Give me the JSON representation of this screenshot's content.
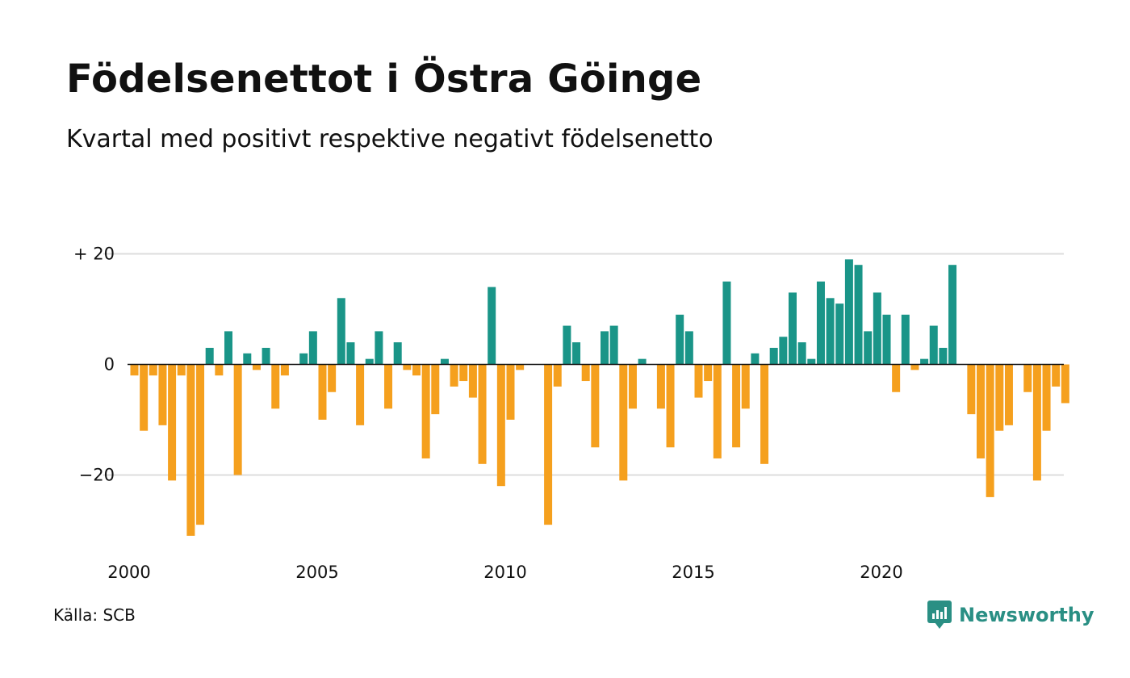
{
  "title": "Födelsenettot i Östra Göinge",
  "subtitle": "Kvartal med positivt respektive negativt födelsenetto",
  "source": "Källa: SCB",
  "brand": {
    "name": "Newsworthy",
    "icon": "newsworthy-chart-bubble-icon"
  },
  "colors": {
    "positive": "#1a9588",
    "negative": "#f5a01e",
    "grid": "#dddddd",
    "zero_line": "#111111",
    "brand": "#2a8f84"
  },
  "chart_data": {
    "type": "bar",
    "x_tick_labels": [
      "2000",
      "2005",
      "2010",
      "2015",
      "2020"
    ],
    "x_tick_years": [
      2000,
      2005,
      2010,
      2015,
      2020
    ],
    "y_ticks": [
      {
        "value": 20,
        "label": "+ 20"
      },
      {
        "value": 0,
        "label": "0"
      },
      {
        "value": -20,
        "label": "−20"
      }
    ],
    "ylim": [
      -31,
      20
    ],
    "grid": true,
    "legend": "none",
    "first_quarter": "2000 Q1",
    "values": [
      -2,
      -12,
      -2,
      -11,
      -21,
      -2,
      -31,
      -29,
      3,
      -2,
      6,
      -20,
      2,
      -1,
      3,
      -8,
      -2,
      0,
      2,
      6,
      -10,
      -5,
      12,
      4,
      -11,
      1,
      6,
      -8,
      4,
      -1,
      -2,
      -17,
      -9,
      1,
      -4,
      -3,
      -6,
      -18,
      14,
      -22,
      -10,
      -1,
      0,
      0,
      -29,
      -4,
      7,
      4,
      -3,
      -15,
      6,
      7,
      -21,
      -8,
      1,
      0,
      -8,
      -15,
      9,
      6,
      -6,
      -3,
      -17,
      15,
      -15,
      -8,
      2,
      -18,
      3,
      5,
      13,
      4,
      1,
      15,
      12,
      11,
      19,
      18,
      6,
      13,
      9,
      -5,
      9,
      -1,
      1,
      7,
      3,
      18,
      0,
      -9,
      -17,
      -24,
      -12,
      -11,
      0,
      -5,
      -21,
      -12,
      -4,
      -7
    ]
  }
}
